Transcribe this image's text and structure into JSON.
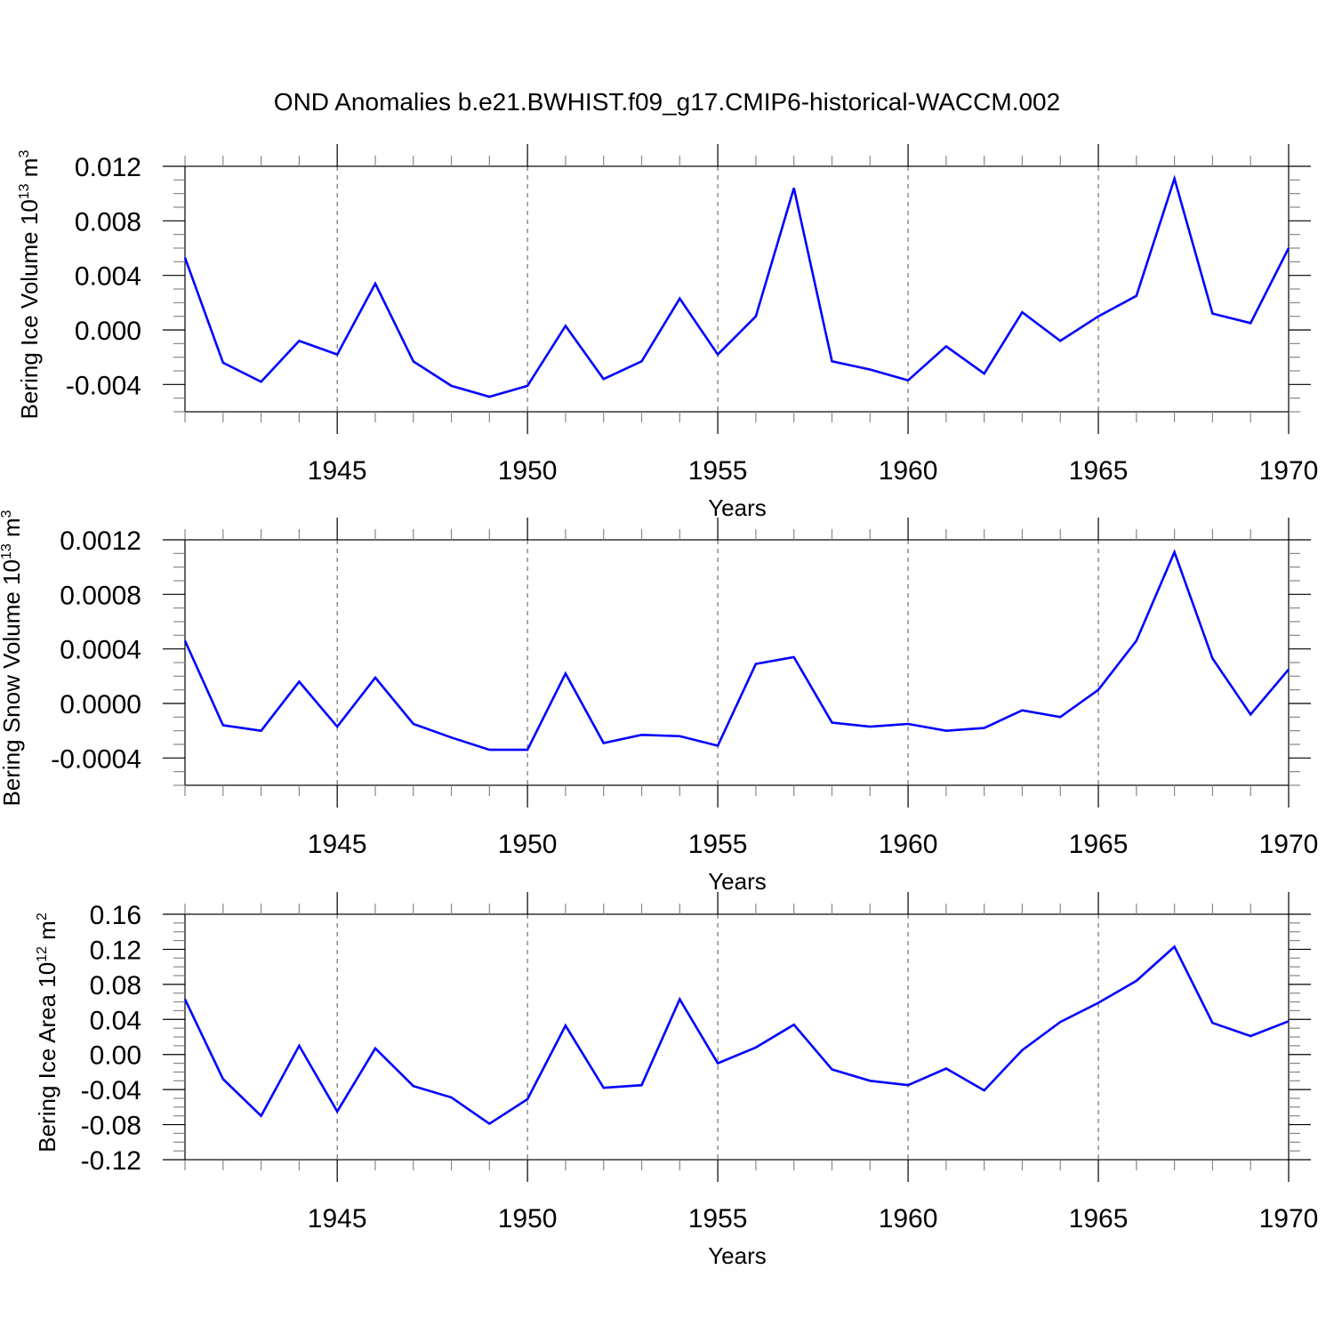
{
  "title": "OND Anomalies b.e21.BWHIST.f09_g17.CMIP6-historical-WACCM.002",
  "colors": {
    "line": "#0000ff",
    "axis": "#000000"
  },
  "chart_data": [
    {
      "type": "line",
      "xlabel": "Years",
      "ylabel": "Bering Ice Volume 10",
      "ylabel_exp": "13",
      "ylabel_unit": " m",
      "ylabel_unit_exp": "3",
      "xlim": [
        1941,
        1970
      ],
      "ylim": [
        -0.006,
        0.012
      ],
      "x_ticks": [
        1945,
        1950,
        1955,
        1960,
        1965,
        1970
      ],
      "x_tick_labels": [
        "1945",
        "1950",
        "1955",
        "1960",
        "1965",
        "1970"
      ],
      "y_ticks": [
        0.012,
        0.008,
        0.004,
        0.0,
        -0.004
      ],
      "y_tick_labels": [
        "0.012",
        "0.008",
        "0.004",
        "0.000",
        "-0.004"
      ],
      "y_minor_step": 0.001,
      "grid": "dashed vertical at major x ticks",
      "x": [
        1941,
        1942,
        1943,
        1944,
        1945,
        1946,
        1947,
        1948,
        1949,
        1950,
        1951,
        1952,
        1953,
        1954,
        1955,
        1956,
        1957,
        1958,
        1959,
        1960,
        1961,
        1962,
        1963,
        1964,
        1965,
        1966,
        1967,
        1968,
        1969,
        1970
      ],
      "values": [
        0.0053,
        -0.0024,
        -0.0038,
        -0.0008,
        -0.0018,
        0.0034,
        -0.0023,
        -0.0041,
        -0.0049,
        -0.0041,
        0.0003,
        -0.0036,
        -0.0023,
        0.0023,
        -0.0018,
        0.001,
        0.0104,
        -0.0023,
        -0.0029,
        -0.0037,
        -0.0012,
        -0.0032,
        0.0013,
        -0.0008,
        0.001,
        0.0025,
        0.0111,
        0.0012,
        0.0005,
        0.006
      ]
    },
    {
      "type": "line",
      "xlabel": "Years",
      "ylabel": "Bering Snow Volume 10",
      "ylabel_exp": "13",
      "ylabel_unit": " m",
      "ylabel_unit_exp": "3",
      "xlim": [
        1941,
        1970
      ],
      "ylim": [
        -0.0006,
        0.0012
      ],
      "x_ticks": [
        1945,
        1950,
        1955,
        1960,
        1965,
        1970
      ],
      "x_tick_labels": [
        "1945",
        "1950",
        "1955",
        "1960",
        "1965",
        "1970"
      ],
      "y_ticks": [
        0.0012,
        0.0008,
        0.0004,
        0.0,
        -0.0004
      ],
      "y_tick_labels": [
        "0.0012",
        "0.0008",
        "0.0004",
        "0.0000",
        "-0.0004"
      ],
      "y_minor_step": 0.0001,
      "grid": "dashed vertical at major x ticks",
      "x": [
        1941,
        1942,
        1943,
        1944,
        1945,
        1946,
        1947,
        1948,
        1949,
        1950,
        1951,
        1952,
        1953,
        1954,
        1955,
        1956,
        1957,
        1958,
        1959,
        1960,
        1961,
        1962,
        1963,
        1964,
        1965,
        1966,
        1967,
        1968,
        1969,
        1970
      ],
      "values": [
        0.00046,
        -0.00016,
        -0.0002,
        0.00016,
        -0.00017,
        0.00019,
        -0.00015,
        -0.00025,
        -0.00034,
        -0.00034,
        0.00022,
        -0.00029,
        -0.00023,
        -0.00024,
        -0.00031,
        0.00029,
        0.00034,
        -0.00014,
        -0.00017,
        -0.00015,
        -0.0002,
        -0.00018,
        -5e-05,
        -0.0001,
        0.0001,
        0.00046,
        0.00111,
        0.00033,
        -8e-05,
        0.00025
      ]
    },
    {
      "type": "line",
      "xlabel": "Years",
      "ylabel": "Bering Ice Area 10",
      "ylabel_exp": "12",
      "ylabel_unit": " m",
      "ylabel_unit_exp": "2",
      "xlim": [
        1941,
        1970
      ],
      "ylim": [
        -0.12,
        0.16
      ],
      "x_ticks": [
        1945,
        1950,
        1955,
        1960,
        1965,
        1970
      ],
      "x_tick_labels": [
        "1945",
        "1950",
        "1955",
        "1960",
        "1965",
        "1970"
      ],
      "y_ticks": [
        0.16,
        0.12,
        0.08,
        0.04,
        0.0,
        -0.04,
        -0.08,
        -0.12
      ],
      "y_tick_labels": [
        "0.16",
        "0.12",
        "0.08",
        "0.04",
        "0.00",
        "-0.04",
        "-0.08",
        "-0.12"
      ],
      "y_minor_step": 0.01,
      "grid": "dashed vertical at major x ticks",
      "x": [
        1941,
        1942,
        1943,
        1944,
        1945,
        1946,
        1947,
        1948,
        1949,
        1950,
        1951,
        1952,
        1953,
        1954,
        1955,
        1956,
        1957,
        1958,
        1959,
        1960,
        1961,
        1962,
        1963,
        1964,
        1965,
        1966,
        1967,
        1968,
        1969,
        1970
      ],
      "values": [
        0.063,
        -0.028,
        -0.07,
        0.01,
        -0.065,
        0.007,
        -0.036,
        -0.049,
        -0.079,
        -0.051,
        0.033,
        -0.038,
        -0.035,
        0.063,
        -0.01,
        0.008,
        0.034,
        -0.017,
        -0.03,
        -0.035,
        -0.016,
        -0.041,
        0.005,
        0.037,
        0.059,
        0.084,
        0.123,
        0.036,
        0.021,
        0.038
      ]
    }
  ]
}
